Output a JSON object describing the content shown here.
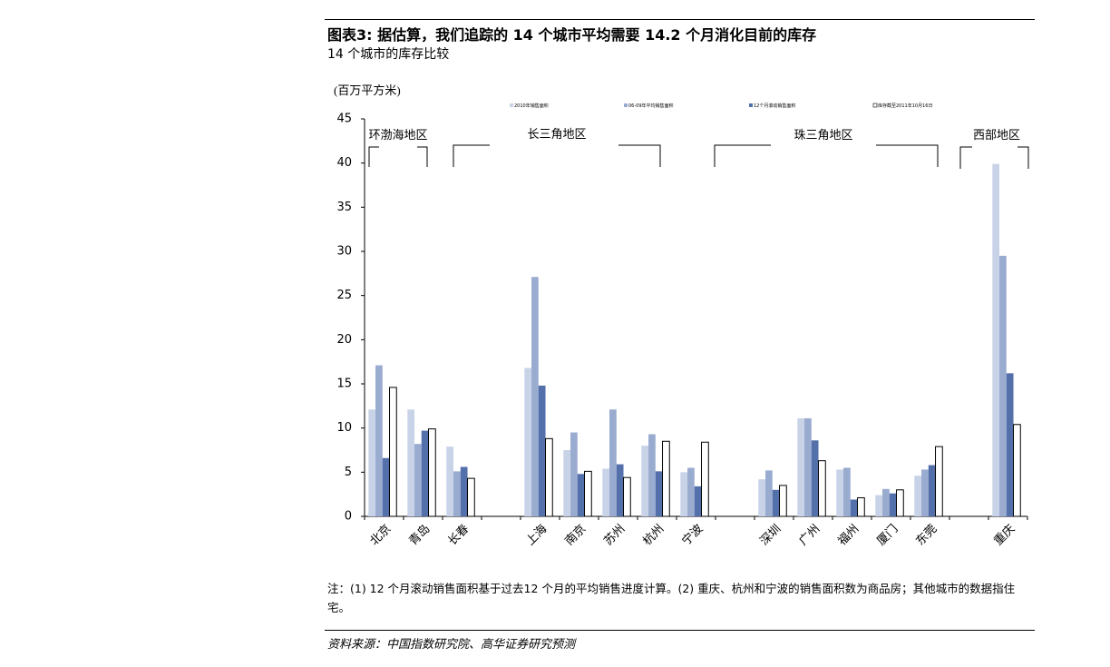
{
  "chart_data": {
    "type": "bar",
    "title": "图表3: 据估算，我们追踪的 14 个城市平均需要 14.2 个月消化目前的库存",
    "subtitle": "14 个城市的库存比较",
    "y_label": "(百万平方米)",
    "region_labels": [
      "环渤海地区",
      "长三角地区",
      "珠三角地区",
      "西部地区"
    ],
    "categories": [
      "北京",
      "青岛",
      "长春",
      null,
      "上海",
      "南京",
      "苏州",
      "杭州",
      "宁波",
      null,
      "深圳",
      "广州",
      "福州",
      "厦门",
      "东莞",
      null,
      "重庆"
    ],
    "series": [
      {
        "name": "2010年销售面积",
        "color": "#c9d3e8",
        "values": [
          12.1,
          12.1,
          7.9,
          null,
          16.8,
          7.5,
          5.4,
          8.0,
          5.0,
          null,
          4.2,
          11.1,
          5.3,
          2.4,
          4.6,
          null,
          39.9
        ]
      },
      {
        "name": "06-09年平均销售面积",
        "color": "#9aabd0",
        "values": [
          17.1,
          8.2,
          5.1,
          null,
          27.1,
          9.5,
          12.1,
          9.3,
          5.5,
          null,
          5.2,
          11.1,
          5.5,
          3.1,
          5.3,
          null,
          29.5
        ]
      },
      {
        "name": "12个月滚动销售面积",
        "color": "#5470ab",
        "values": [
          6.6,
          9.7,
          5.6,
          null,
          14.8,
          4.8,
          5.9,
          5.1,
          3.4,
          null,
          3.0,
          8.6,
          1.9,
          2.6,
          5.8,
          null,
          16.2
        ]
      },
      {
        "name": "库存截至2011年10月16日",
        "color": "#ffffff",
        "values": [
          14.6,
          9.9,
          4.3,
          null,
          8.8,
          5.1,
          4.4,
          8.5,
          8.4,
          null,
          3.5,
          6.3,
          2.1,
          3.0,
          7.9,
          null,
          10.4
        ]
      }
    ],
    "ylim": [
      0,
      45
    ],
    "yticks": [
      0,
      5,
      10,
      15,
      20,
      25,
      30,
      35,
      40,
      45
    ],
    "note": "注：(1) 12 个月滚动销售面积基于过去12 个月的平均销售进度计算。(2) 重庆、杭州和宁波的销售面积数为商品房；其他城市的数据指住宅。",
    "source": "资料来源：中国指数研究院、高华证券研究预测"
  }
}
